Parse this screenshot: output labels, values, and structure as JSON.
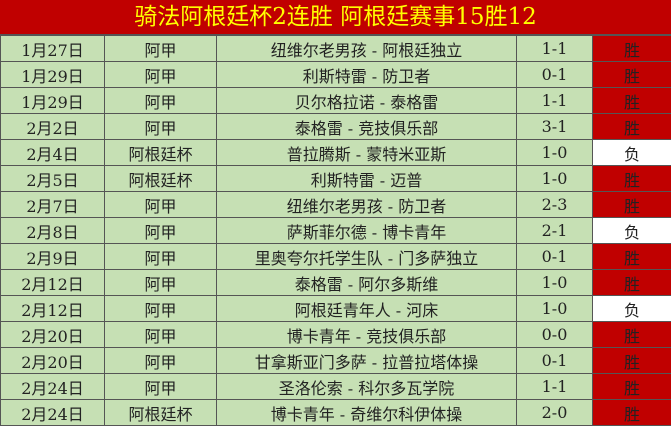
{
  "title": "骑法阿根廷杯2连胜 阿根廷赛事15胜12",
  "colors": {
    "header_bg": "#c00000",
    "title_text": "#ffff00",
    "cell_bg": "#c6e0b4",
    "win_bg": "#c00000",
    "loss_bg": "#ffffff"
  },
  "rows": [
    {
      "date": "1月27日",
      "league": "阿甲",
      "match": "纽维尔老男孩 - 阿根廷独立",
      "score": "1-1",
      "result": "胜"
    },
    {
      "date": "1月29日",
      "league": "阿甲",
      "match": "利斯特雷 - 防卫者",
      "score": "0-1",
      "result": "胜"
    },
    {
      "date": "1月29日",
      "league": "阿甲",
      "match": "贝尔格拉诺 - 泰格雷",
      "score": "1-1",
      "result": "胜"
    },
    {
      "date": "2月2日",
      "league": "阿甲",
      "match": "泰格雷 - 竞技俱乐部",
      "score": "3-1",
      "result": "胜"
    },
    {
      "date": "2月4日",
      "league": "阿根廷杯",
      "match": "普拉腾斯 - 蒙特米亚斯",
      "score": "1-0",
      "result": "负"
    },
    {
      "date": "2月5日",
      "league": "阿根廷杯",
      "match": "利斯特雷 - 迈普",
      "score": "1-0",
      "result": "胜"
    },
    {
      "date": "2月7日",
      "league": "阿甲",
      "match": "纽维尔老男孩 - 防卫者",
      "score": "2-3",
      "result": "胜"
    },
    {
      "date": "2月8日",
      "league": "阿甲",
      "match": "萨斯菲尔德 - 博卡青年",
      "score": "2-1",
      "result": "负"
    },
    {
      "date": "2月9日",
      "league": "阿甲",
      "match": "里奥夸尔托学生队 - 门多萨独立",
      "score": "0-1",
      "result": "胜"
    },
    {
      "date": "2月12日",
      "league": "阿甲",
      "match": "泰格雷 - 阿尔多斯维",
      "score": "1-0",
      "result": "胜"
    },
    {
      "date": "2月12日",
      "league": "阿甲",
      "match": "阿根廷青年人 - 河床",
      "score": "1-0",
      "result": "负"
    },
    {
      "date": "2月20日",
      "league": "阿甲",
      "match": "博卡青年 - 竞技俱乐部",
      "score": "0-0",
      "result": "胜"
    },
    {
      "date": "2月20日",
      "league": "阿甲",
      "match": "甘拿斯亚门多萨 - 拉普拉塔体操",
      "score": "0-1",
      "result": "胜"
    },
    {
      "date": "2月24日",
      "league": "阿甲",
      "match": "圣洛伦索 - 科尔多瓦学院",
      "score": "1-1",
      "result": "胜"
    },
    {
      "date": "2月24日",
      "league": "阿根廷杯",
      "match": "博卡青年 - 奇维尔科伊体操",
      "score": "2-0",
      "result": "胜"
    }
  ]
}
